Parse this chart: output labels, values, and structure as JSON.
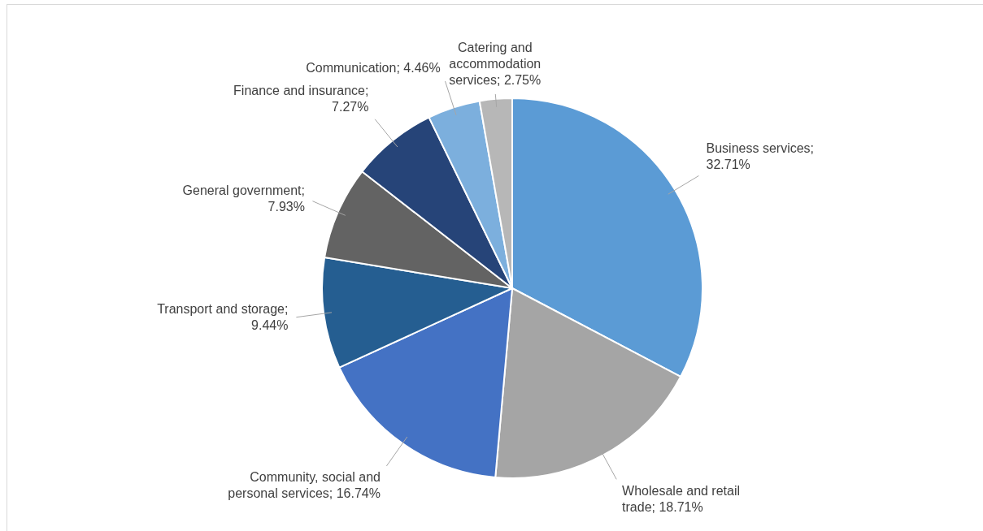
{
  "chart_data": {
    "type": "pie",
    "categories": [
      "Business services",
      "Wholesale and retail trade",
      "Community, social and personal services",
      "Transport and storage",
      "General government",
      "Finance and insurance",
      "Communication",
      "Catering and accommodation services"
    ],
    "values": [
      32.71,
      18.71,
      16.74,
      9.44,
      7.93,
      7.27,
      4.46,
      2.75
    ],
    "value_labels": [
      "; 32.71%",
      "; 18.71%",
      "; 16.74%",
      "; 9.44%",
      "; 7.93%",
      "; 7.27%",
      "; 4.46%",
      "; 2.75%"
    ],
    "colors": [
      "#5b9bd5",
      "#a5a5a5",
      "#4472c4",
      "#255e91",
      "#636363",
      "#264478",
      "#7cafdd",
      "#b7b7b7"
    ]
  }
}
